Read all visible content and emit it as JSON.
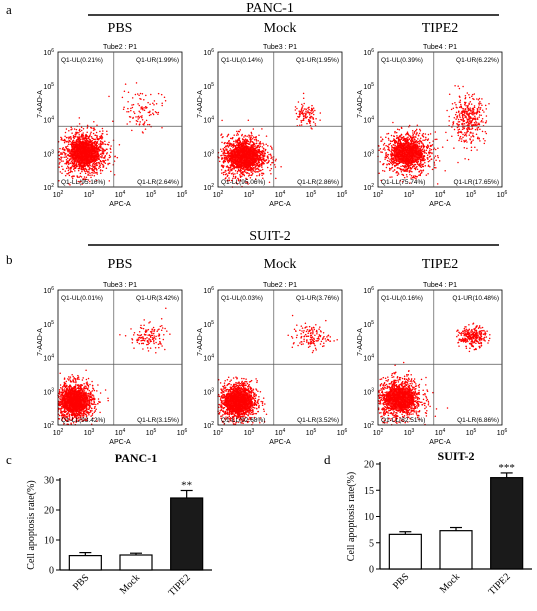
{
  "figure": {
    "panel_labels": [
      "a",
      "b",
      "c",
      "d"
    ],
    "sections": [
      {
        "label": "a",
        "title": "PANC-1"
      },
      {
        "label": "b",
        "title": "SUIT-2"
      }
    ]
  },
  "chart_data": [
    {
      "type": "scatter",
      "section": "PANC-1",
      "heading": "PBS",
      "tube_label": "Tube2 : P1",
      "xlabel": "APC-A",
      "ylabel": "7-AAD-A",
      "x_scale": "log",
      "y_scale": "log",
      "xlim": [
        100,
        1000000
      ],
      "ylim": [
        100,
        1000000
      ],
      "gate": [
        6300,
        6300
      ],
      "quadrants": {
        "UL": "Q1-UL(0.21%)",
        "UR": "Q1-UR(1.99%)",
        "LL": "Q1-LL(95.16%)",
        "LR": "Q1-LR(2.64%)"
      },
      "quadrant_pct": {
        "UL": 0.21,
        "UR": 1.99,
        "LL": 95.16,
        "LR": 2.64
      },
      "populations": [
        {
          "x": 700,
          "y": 1000,
          "spread_x": 0.36,
          "spread_y": 0.32
        },
        {
          "x": 50000,
          "y": 20000,
          "spread_x": 0.35,
          "spread_y": 0.3
        }
      ]
    },
    {
      "type": "scatter",
      "section": "PANC-1",
      "heading": "Mock",
      "tube_label": "Tube3 : P1",
      "xlabel": "APC-A",
      "ylabel": "7-AAD-A",
      "x_scale": "log",
      "y_scale": "log",
      "xlim": [
        100,
        1000000
      ],
      "ylim": [
        100,
        1000000
      ],
      "gate": [
        6300,
        6300
      ],
      "quadrants": {
        "UL": "Q1-UL(0.14%)",
        "UR": "Q1-UR(1.95%)",
        "LL": "Q1-LL(95.06%)",
        "LR": "Q1-LR(2.86%)"
      },
      "quadrant_pct": {
        "UL": 0.14,
        "UR": 1.95,
        "LL": 95.06,
        "LR": 2.86
      },
      "populations": [
        {
          "x": 700,
          "y": 800,
          "spread_x": 0.36,
          "spread_y": 0.3
        },
        {
          "x": 70000,
          "y": 13000,
          "spread_x": 0.2,
          "spread_y": 0.2
        }
      ]
    },
    {
      "type": "scatter",
      "section": "PANC-1",
      "heading": "TIPE2",
      "tube_label": "Tube4 : P1",
      "xlabel": "APC-A",
      "ylabel": "7-AAD-A",
      "x_scale": "log",
      "y_scale": "log",
      "xlim": [
        100,
        1000000
      ],
      "ylim": [
        100,
        1000000
      ],
      "gate": [
        6300,
        6300
      ],
      "quadrants": {
        "UL": "Q1-UL(0.39%)",
        "UR": "Q1-UR(6.22%)",
        "LL": "Q1-LL(75.74%)",
        "LR": "Q1-LR(17.65%)"
      },
      "quadrant_pct": {
        "UL": 0.39,
        "UR": 6.22,
        "LL": 75.74,
        "LR": 17.65
      },
      "populations": [
        {
          "x": 900,
          "y": 1000,
          "spread_x": 0.38,
          "spread_y": 0.3
        },
        {
          "x": 80000,
          "y": 10000,
          "spread_x": 0.28,
          "spread_y": 0.35
        }
      ]
    },
    {
      "type": "scatter",
      "section": "SUIT-2",
      "heading": "PBS",
      "tube_label": "Tube3 : P1",
      "xlabel": "APC-A",
      "ylabel": "7-AAD-A",
      "x_scale": "log",
      "y_scale": "log",
      "xlim": [
        100,
        1000000
      ],
      "ylim": [
        100,
        1000000
      ],
      "gate": [
        6300,
        6300
      ],
      "quadrants": {
        "UL": "Q1-UL(0.01%)",
        "UR": "Q1-UR(3.42%)",
        "LL": "Q1-LL(93.42%)",
        "LR": "Q1-LR(3.15%)"
      },
      "quadrant_pct": {
        "UL": 0.01,
        "UR": 3.42,
        "LL": 93.42,
        "LR": 3.15
      },
      "populations": [
        {
          "x": 350,
          "y": 500,
          "spread_x": 0.3,
          "spread_y": 0.28
        },
        {
          "x": 80000,
          "y": 40000,
          "spread_x": 0.3,
          "spread_y": 0.2
        }
      ]
    },
    {
      "type": "scatter",
      "section": "SUIT-2",
      "heading": "Mock",
      "tube_label": "Tube2 : P1",
      "xlabel": "APC-A",
      "ylabel": "7-AAD-A",
      "x_scale": "log",
      "y_scale": "log",
      "xlim": [
        100,
        1000000
      ],
      "ylim": [
        100,
        1000000
      ],
      "gate": [
        6300,
        6300
      ],
      "quadrants": {
        "UL": "Q1-UL(0.03%)",
        "UR": "Q1-UR(3.76%)",
        "LL": "Q1-LL(92.68%)",
        "LR": "Q1-LR(3.52%)"
      },
      "quadrant_pct": {
        "UL": 0.03,
        "UR": 3.76,
        "LL": 92.68,
        "LR": 3.52
      },
      "populations": [
        {
          "x": 450,
          "y": 500,
          "spread_x": 0.3,
          "spread_y": 0.28
        },
        {
          "x": 100000,
          "y": 40000,
          "spread_x": 0.3,
          "spread_y": 0.18
        }
      ]
    },
    {
      "type": "scatter",
      "section": "SUIT-2",
      "heading": "TIPE2",
      "tube_label": "Tube4 : P1",
      "xlabel": "APC-A",
      "ylabel": "7-AAD-A",
      "x_scale": "log",
      "y_scale": "log",
      "xlim": [
        100,
        1000000
      ],
      "ylim": [
        100,
        1000000
      ],
      "gate": [
        6300,
        6300
      ],
      "quadrants": {
        "UL": "Q1-UL(0.16%)",
        "UR": "Q1-UR(10.48%)",
        "LL": "Q1-LL(82.51%)",
        "LR": "Q1-LR(6.86%)"
      },
      "quadrant_pct": {
        "UL": 0.16,
        "UR": 10.48,
        "LL": 82.51,
        "LR": 6.86
      },
      "populations": [
        {
          "x": 500,
          "y": 600,
          "spread_x": 0.36,
          "spread_y": 0.3
        },
        {
          "x": 110000,
          "y": 40000,
          "spread_x": 0.22,
          "spread_y": 0.15
        }
      ]
    },
    {
      "type": "bar",
      "label": "c",
      "title": "PANC-1",
      "ylabel": "Cell apoptosis rate(%)",
      "categories": [
        "PBS",
        "Mock",
        "TIPE2"
      ],
      "values": [
        4.8,
        5.0,
        24.0
      ],
      "errors": [
        1.0,
        0.6,
        2.5
      ],
      "ylim": [
        0,
        30
      ],
      "yticks": [
        0,
        10,
        20,
        30
      ],
      "significance": {
        "TIPE2": "**"
      },
      "bar_fill": [
        "#ffffff",
        "#ffffff",
        "#1a1a1a"
      ]
    },
    {
      "type": "bar",
      "label": "d",
      "title": "SUIT-2",
      "ylabel": "Cell apoptosis rate(%)",
      "categories": [
        "PBS",
        "Mock",
        "TIPE2"
      ],
      "values": [
        6.6,
        7.3,
        17.4
      ],
      "errors": [
        0.5,
        0.6,
        0.9
      ],
      "ylim": [
        0,
        20
      ],
      "yticks": [
        0,
        5,
        10,
        15,
        20
      ],
      "significance": {
        "TIPE2": "***"
      },
      "bar_fill": [
        "#ffffff",
        "#ffffff",
        "#1a1a1a"
      ]
    }
  ],
  "colors": {
    "dots": "#ff0000",
    "axes": "#000000",
    "gate": "#555555",
    "bar_dark": "#1a1a1a"
  }
}
